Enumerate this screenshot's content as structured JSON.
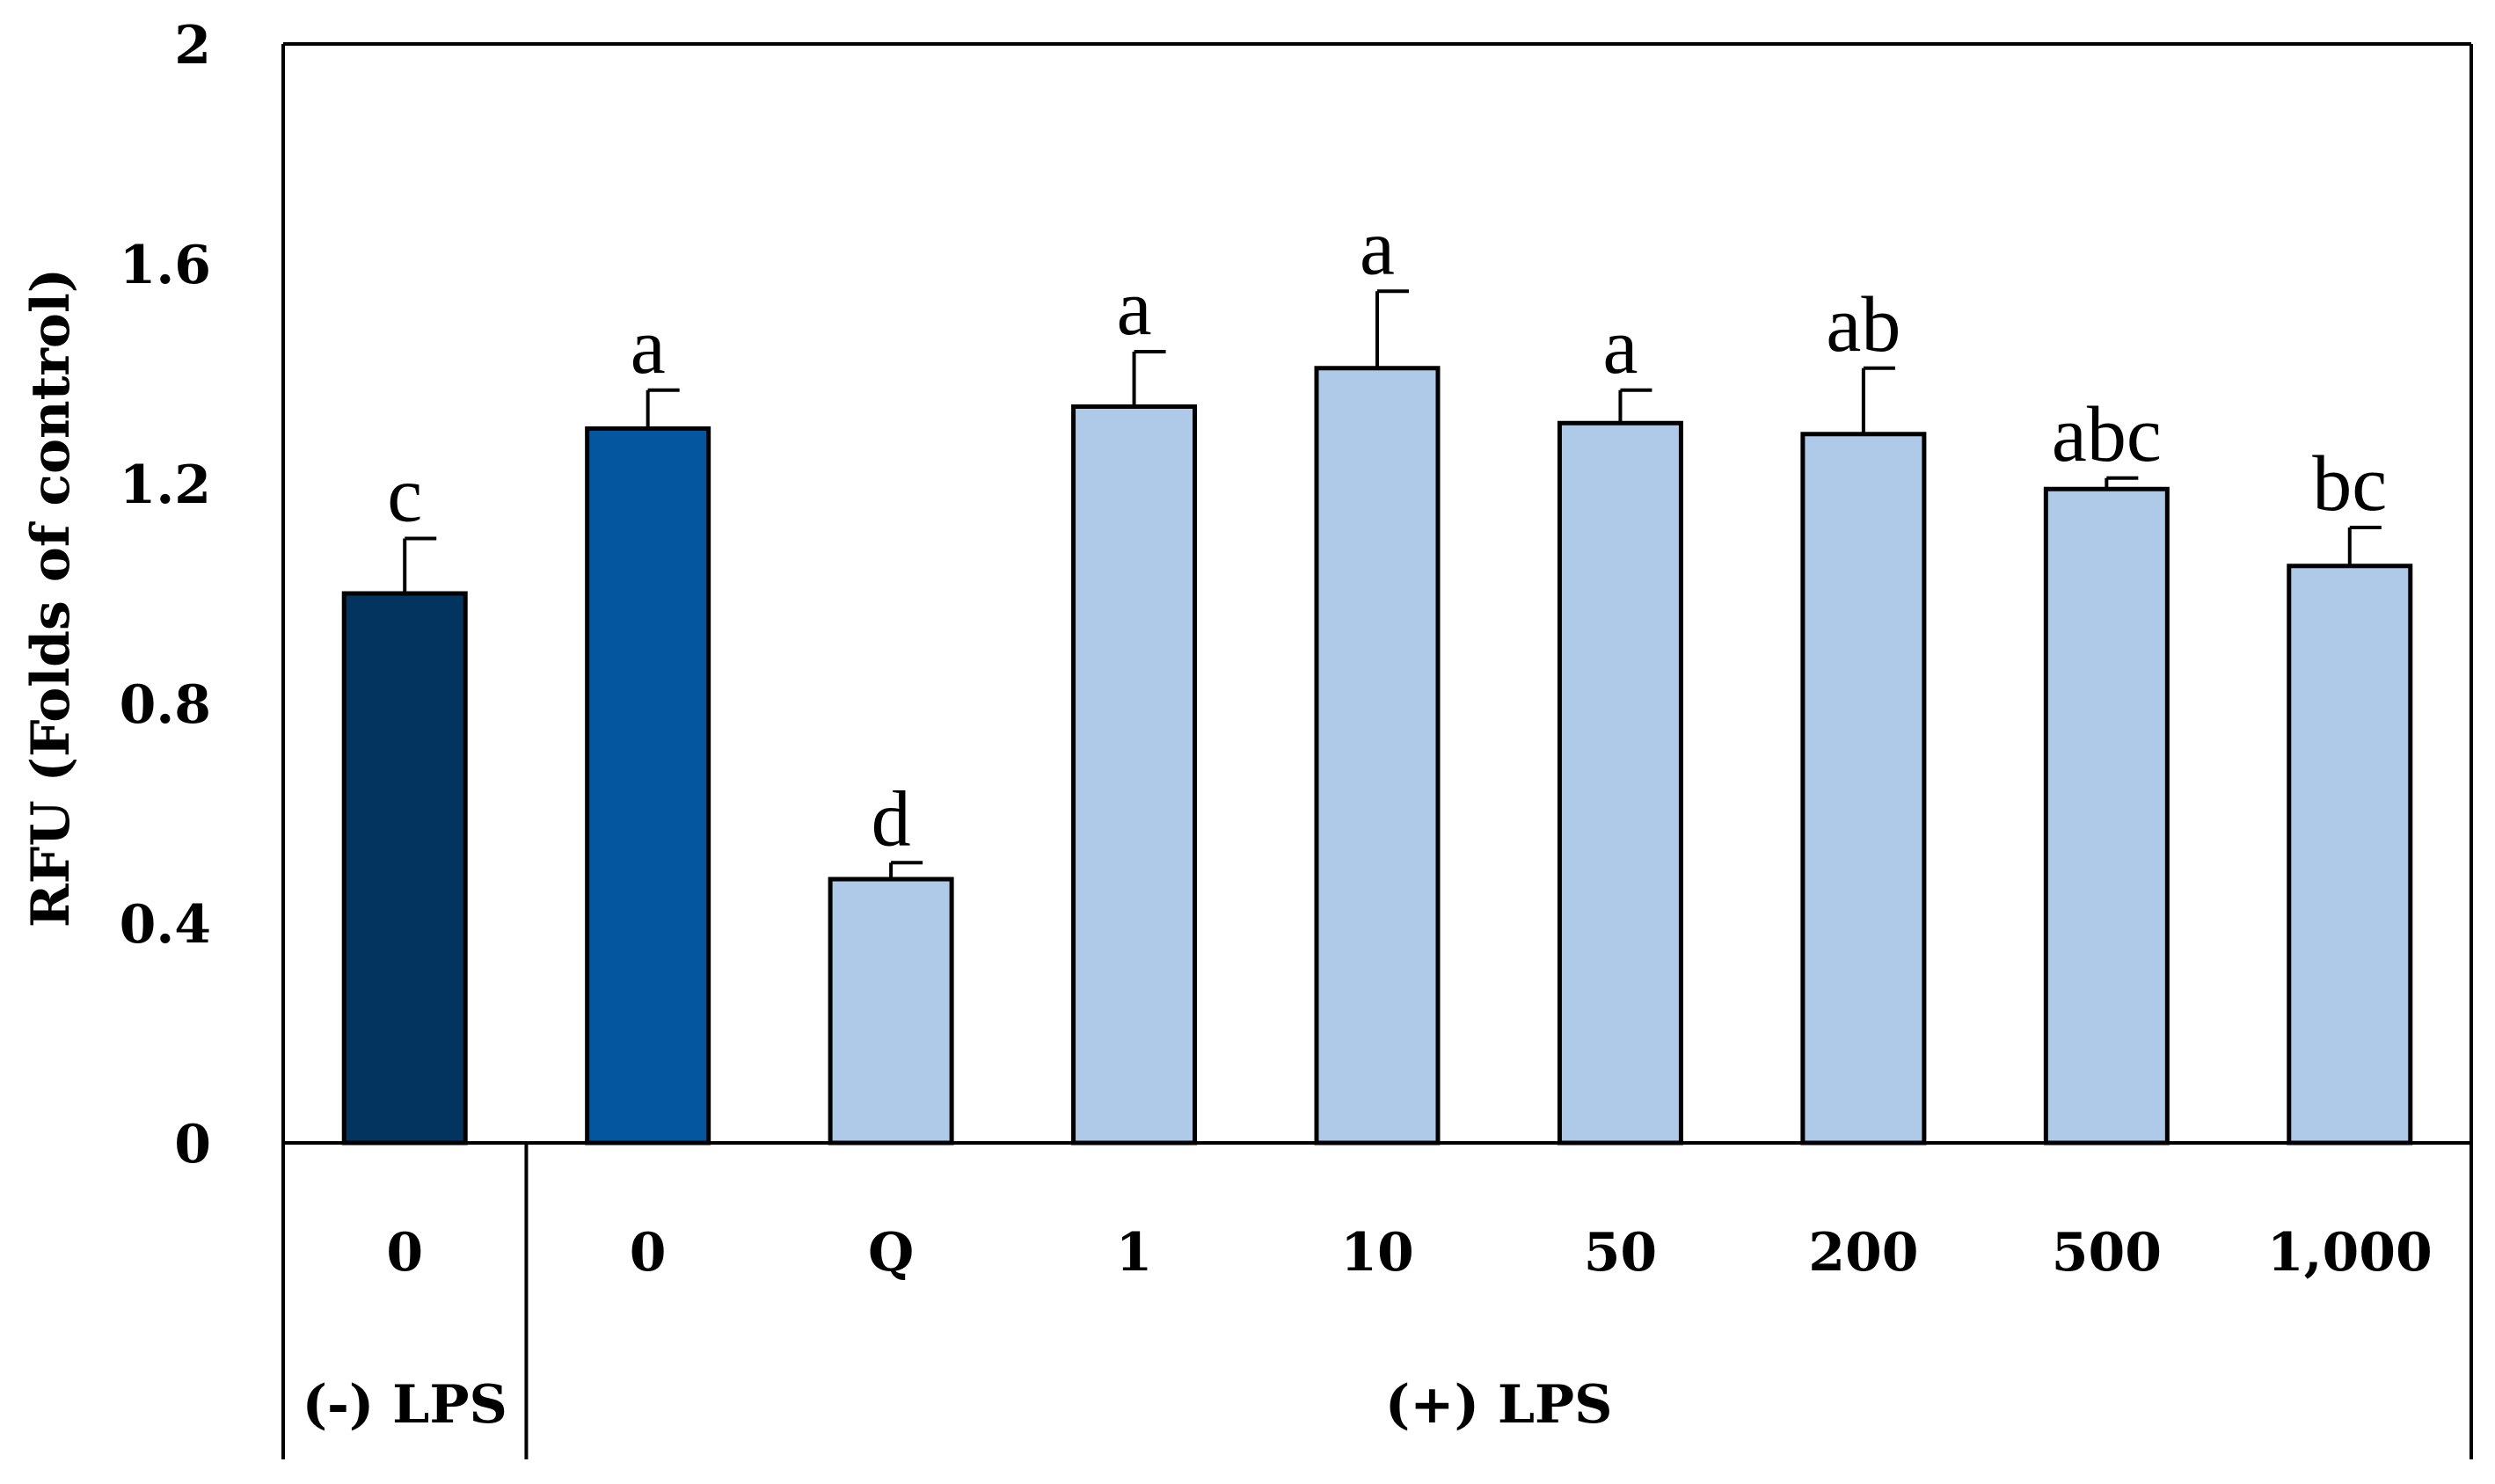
{
  "chart_data": {
    "type": "bar",
    "ylabel": "RFU (Folds of control)",
    "ylim": [
      0,
      2
    ],
    "yticks": [
      "0",
      "0.4",
      "0.8",
      "1.2",
      "1.6",
      "2"
    ],
    "categories": [
      "0",
      "0",
      "Q",
      "1",
      "10",
      "50",
      "200",
      "500",
      "1,000"
    ],
    "values": [
      1.0,
      1.3,
      0.48,
      1.34,
      1.41,
      1.31,
      1.29,
      1.19,
      1.05
    ],
    "errors": [
      0.1,
      0.07,
      0.03,
      0.1,
      0.14,
      0.06,
      0.12,
      0.02,
      0.07
    ],
    "letters": [
      "c",
      "a",
      "d",
      "a",
      "a",
      "a",
      "ab",
      "abc",
      "bc"
    ],
    "groups": [
      {
        "label": "(-) LPS",
        "start": 0,
        "end": 0
      },
      {
        "label": "(+) LPS",
        "start": 1,
        "end": 8
      }
    ],
    "colors": [
      "#03335f",
      "#04569f",
      "#afc9e9",
      "#afc9e9",
      "#afc9e9",
      "#afc9e9",
      "#afc9e9",
      "#afc9e9",
      "#afc9e9"
    ],
    "grid": false,
    "legend": "none"
  }
}
